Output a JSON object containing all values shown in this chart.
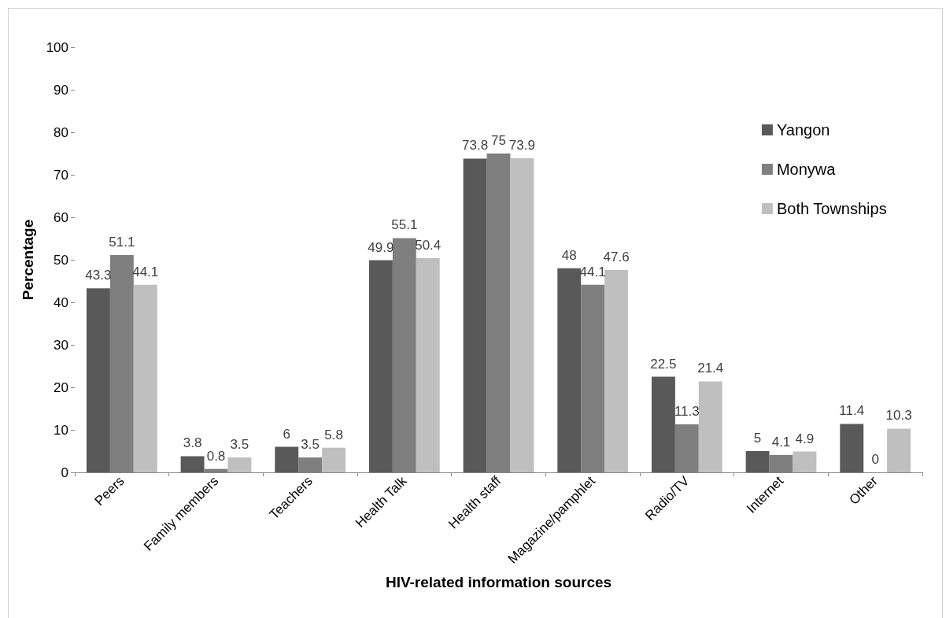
{
  "chart_data": {
    "type": "bar",
    "xlabel": "HIV-related information sources",
    "ylabel": "Percentage",
    "categories": [
      "Peers",
      "Family members",
      "Teachers",
      "Health Talk",
      "Health staff",
      "Magazine/pamphlet",
      "Radio/TV",
      "Internet",
      "Other"
    ],
    "series": [
      {
        "name": "Yangon",
        "color": "#595959",
        "values": [
          43.3,
          3.8,
          6,
          49.9,
          73.8,
          48,
          22.5,
          5,
          11.4
        ]
      },
      {
        "name": "Monywa",
        "color": "#7f7f7f",
        "values": [
          51.1,
          0.8,
          3.5,
          55.1,
          75,
          44.1,
          11.3,
          4.1,
          0
        ]
      },
      {
        "name": "Both Townships",
        "color": "#bfbfbf",
        "values": [
          44.1,
          3.5,
          5.8,
          50.4,
          73.9,
          47.6,
          21.4,
          4.9,
          10.3
        ]
      }
    ],
    "ylim": [
      0,
      100
    ],
    "yticks": [
      0,
      10,
      20,
      30,
      40,
      50,
      60,
      70,
      80,
      90,
      100
    ],
    "grid": false,
    "legend": "top right",
    "data_labels": true
  }
}
